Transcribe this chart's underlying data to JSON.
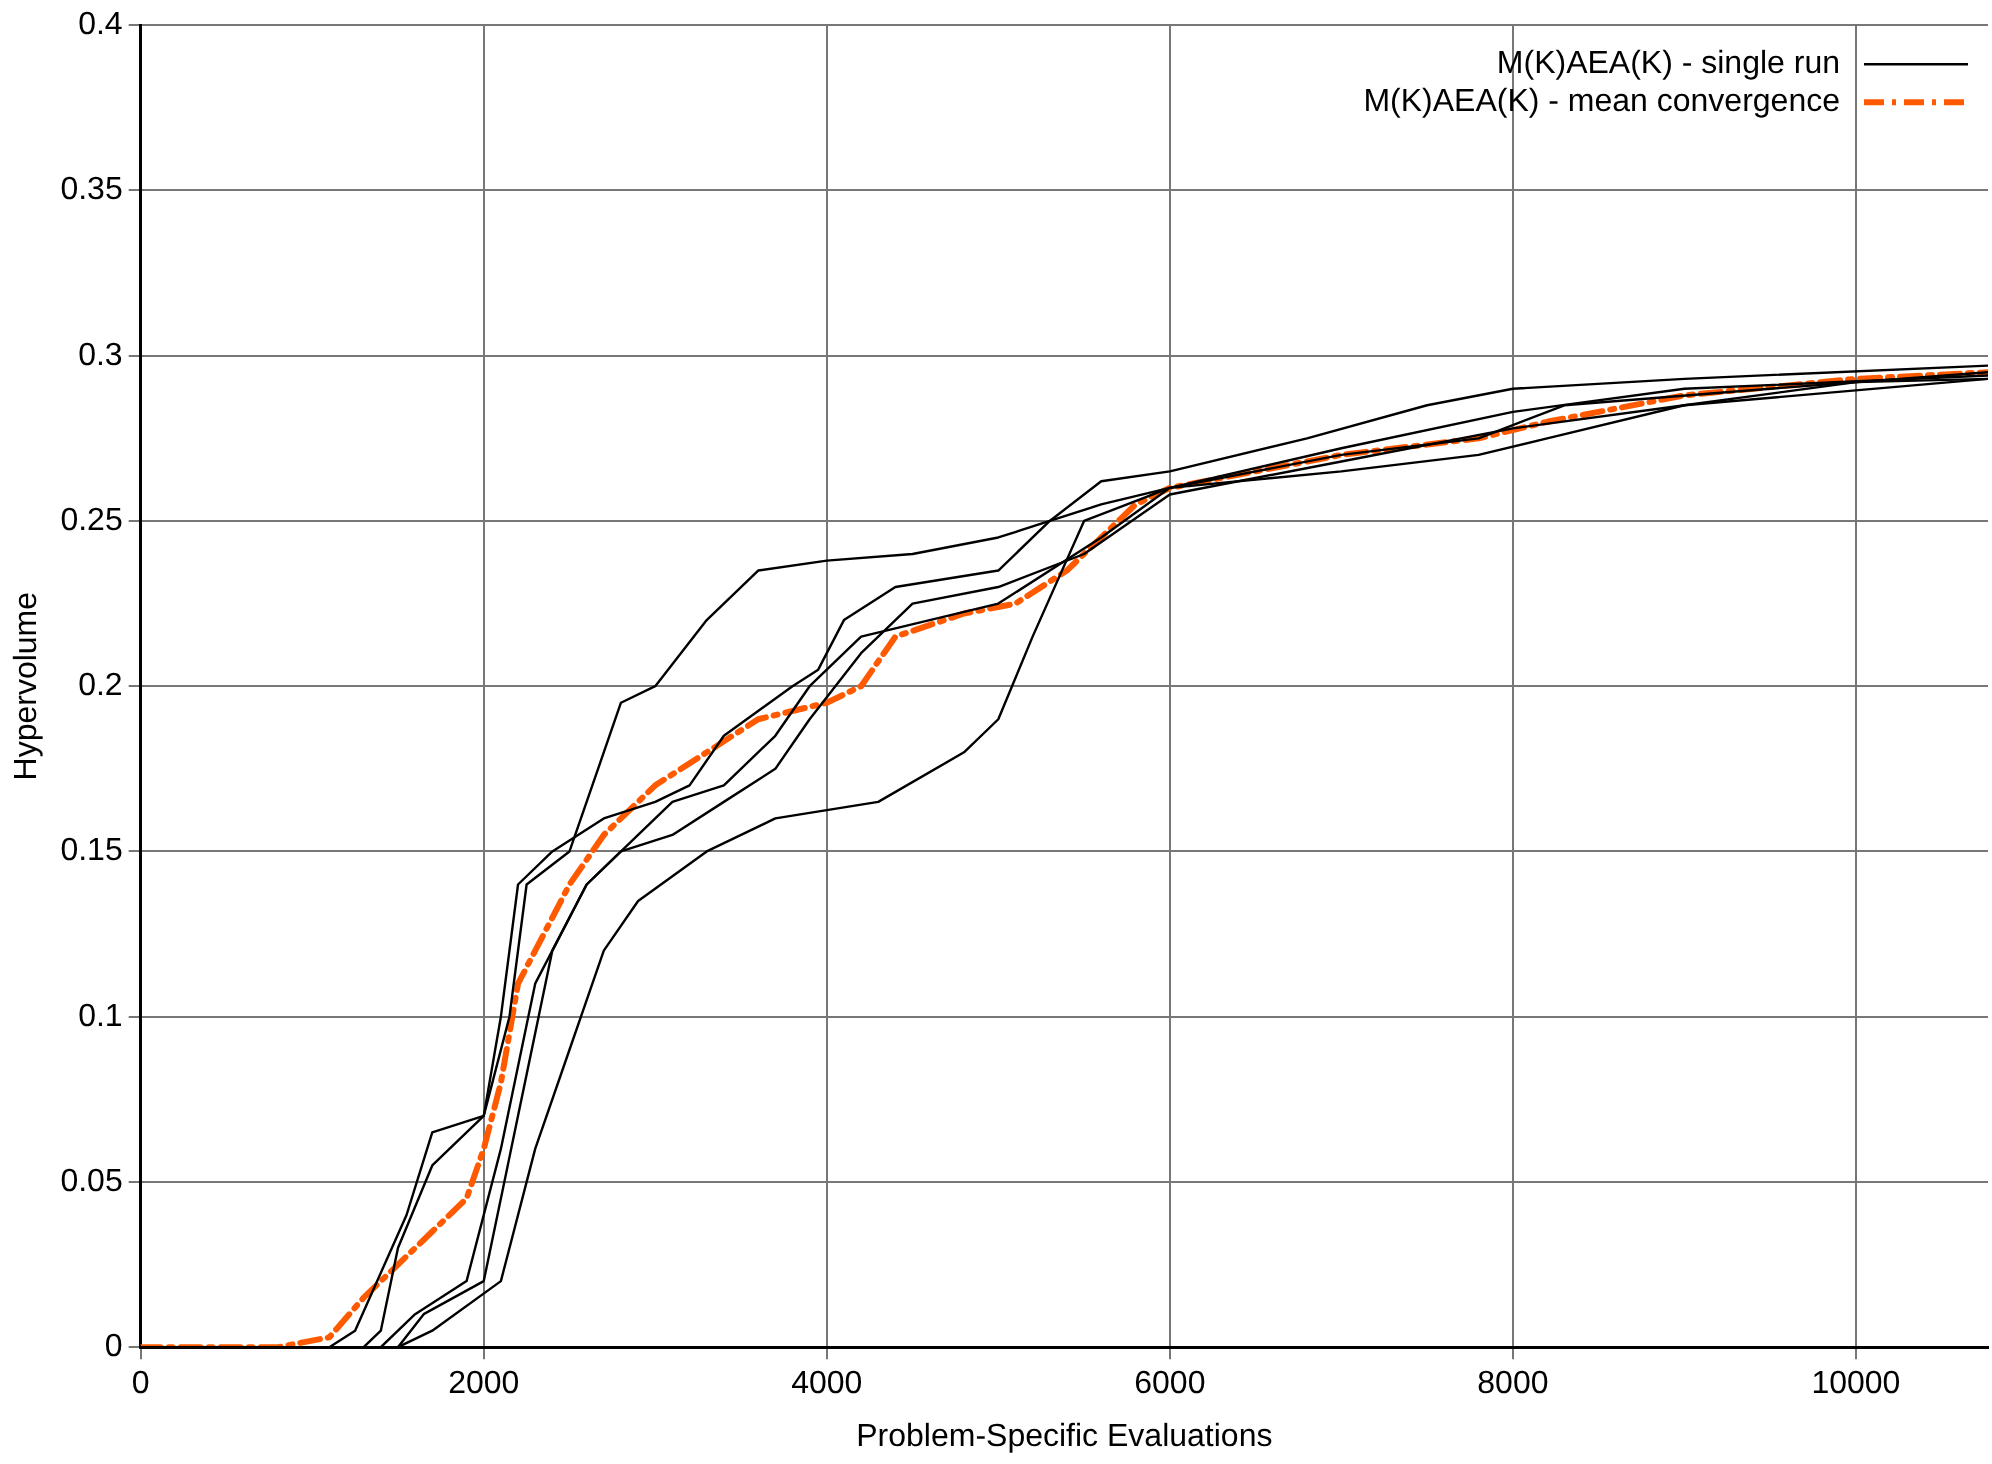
{
  "chart_data": {
    "type": "line",
    "xlabel": "Problem-Specific Evaluations",
    "ylabel": "Hypervolume",
    "xlim": [
      0,
      10770
    ],
    "xticks": [
      0,
      2000,
      4000,
      6000,
      8000,
      10000
    ],
    "ylim": [
      0,
      0.4
    ],
    "yticks": [
      0,
      0.05,
      0.1,
      0.15,
      0.2,
      0.25,
      0.3,
      0.35,
      0.4
    ],
    "grid": true,
    "legend": "top right",
    "marker": "none",
    "series": [
      {
        "name": "M(K)AEA(K) - single run",
        "color": "#000000",
        "line_style": "solid",
        "x": [
          0,
          1300,
          1400,
          1500,
          1700,
          2000,
          2150,
          2250,
          2500,
          2800,
          3000,
          3300,
          3600,
          4000,
          4500,
          5000,
          5300,
          5600,
          6000,
          6800,
          7500,
          8000,
          9000,
          10770
        ],
        "values": [
          0,
          0,
          0.005,
          0.03,
          0.055,
          0.07,
          0.1,
          0.14,
          0.15,
          0.195,
          0.2,
          0.22,
          0.235,
          0.238,
          0.24,
          0.245,
          0.25,
          0.262,
          0.265,
          0.275,
          0.285,
          0.29,
          0.293,
          0.297
        ]
      },
      {
        "color": "#000000",
        "line_style": "solid",
        "x": [
          0,
          1100,
          1250,
          1550,
          1700,
          2000,
          2100,
          2200,
          2400,
          2700,
          3000,
          3200,
          3400,
          3800,
          3950,
          4100,
          4400,
          5000,
          5300,
          5600,
          6000,
          7000,
          8000,
          9000,
          10770
        ],
        "values": [
          0,
          0,
          0.005,
          0.04,
          0.065,
          0.07,
          0.1,
          0.14,
          0.15,
          0.16,
          0.165,
          0.17,
          0.185,
          0.2,
          0.205,
          0.22,
          0.23,
          0.235,
          0.25,
          0.255,
          0.26,
          0.272,
          0.283,
          0.29,
          0.294
        ]
      },
      {
        "color": "#000000",
        "line_style": "solid",
        "x": [
          0,
          1500,
          1700,
          2100,
          2300,
          2500,
          2700,
          2900,
          3300,
          3700,
          4300,
          4800,
          5000,
          5200,
          5500,
          6000,
          7000,
          7800,
          8200,
          9000,
          10000,
          10770
        ],
        "values": [
          0,
          0,
          0.005,
          0.02,
          0.06,
          0.09,
          0.12,
          0.135,
          0.15,
          0.16,
          0.165,
          0.18,
          0.19,
          0.215,
          0.25,
          0.26,
          0.265,
          0.27,
          0.275,
          0.285,
          0.292,
          0.293
        ]
      },
      {
        "color": "#000000",
        "line_style": "solid",
        "x": [
          0,
          1500,
          1650,
          2000,
          2200,
          2400,
          2600,
          2800,
          3100,
          3400,
          3700,
          3900,
          4200,
          4500,
          5000,
          5500,
          6000,
          7000,
          8000,
          9000,
          10770
        ],
        "values": [
          0,
          0,
          0.01,
          0.02,
          0.07,
          0.12,
          0.14,
          0.15,
          0.155,
          0.165,
          0.175,
          0.19,
          0.21,
          0.225,
          0.23,
          0.24,
          0.258,
          0.268,
          0.278,
          0.285,
          0.293
        ]
      },
      {
        "color": "#000000",
        "line_style": "solid",
        "x": [
          0,
          1400,
          1600,
          1900,
          2100,
          2300,
          2600,
          2900,
          3100,
          3400,
          3700,
          3900,
          4200,
          5000,
          5600,
          6000,
          7000,
          7800,
          8300,
          9500,
          10770
        ],
        "values": [
          0,
          0,
          0.01,
          0.02,
          0.06,
          0.11,
          0.14,
          0.155,
          0.165,
          0.17,
          0.185,
          0.2,
          0.215,
          0.225,
          0.245,
          0.26,
          0.27,
          0.275,
          0.285,
          0.29,
          0.295
        ]
      },
      {
        "name": "M(K)AEA(K) - mean convergence",
        "color": "#ff5a00",
        "line_style": "dashed",
        "x": [
          0,
          800,
          1100,
          1300,
          1500,
          1700,
          1900,
          2000,
          2100,
          2200,
          2300,
          2500,
          2700,
          3000,
          3300,
          3600,
          4000,
          4200,
          4400,
          4800,
          5100,
          5400,
          5800,
          6000,
          7000,
          7800,
          8200,
          9000,
          10000,
          10770
        ],
        "values": [
          0,
          0,
          0.003,
          0.015,
          0.025,
          0.035,
          0.045,
          0.06,
          0.08,
          0.11,
          0.12,
          0.14,
          0.155,
          0.17,
          0.18,
          0.19,
          0.195,
          0.2,
          0.215,
          0.222,
          0.225,
          0.235,
          0.255,
          0.26,
          0.27,
          0.275,
          0.28,
          0.288,
          0.293,
          0.295
        ]
      }
    ]
  }
}
